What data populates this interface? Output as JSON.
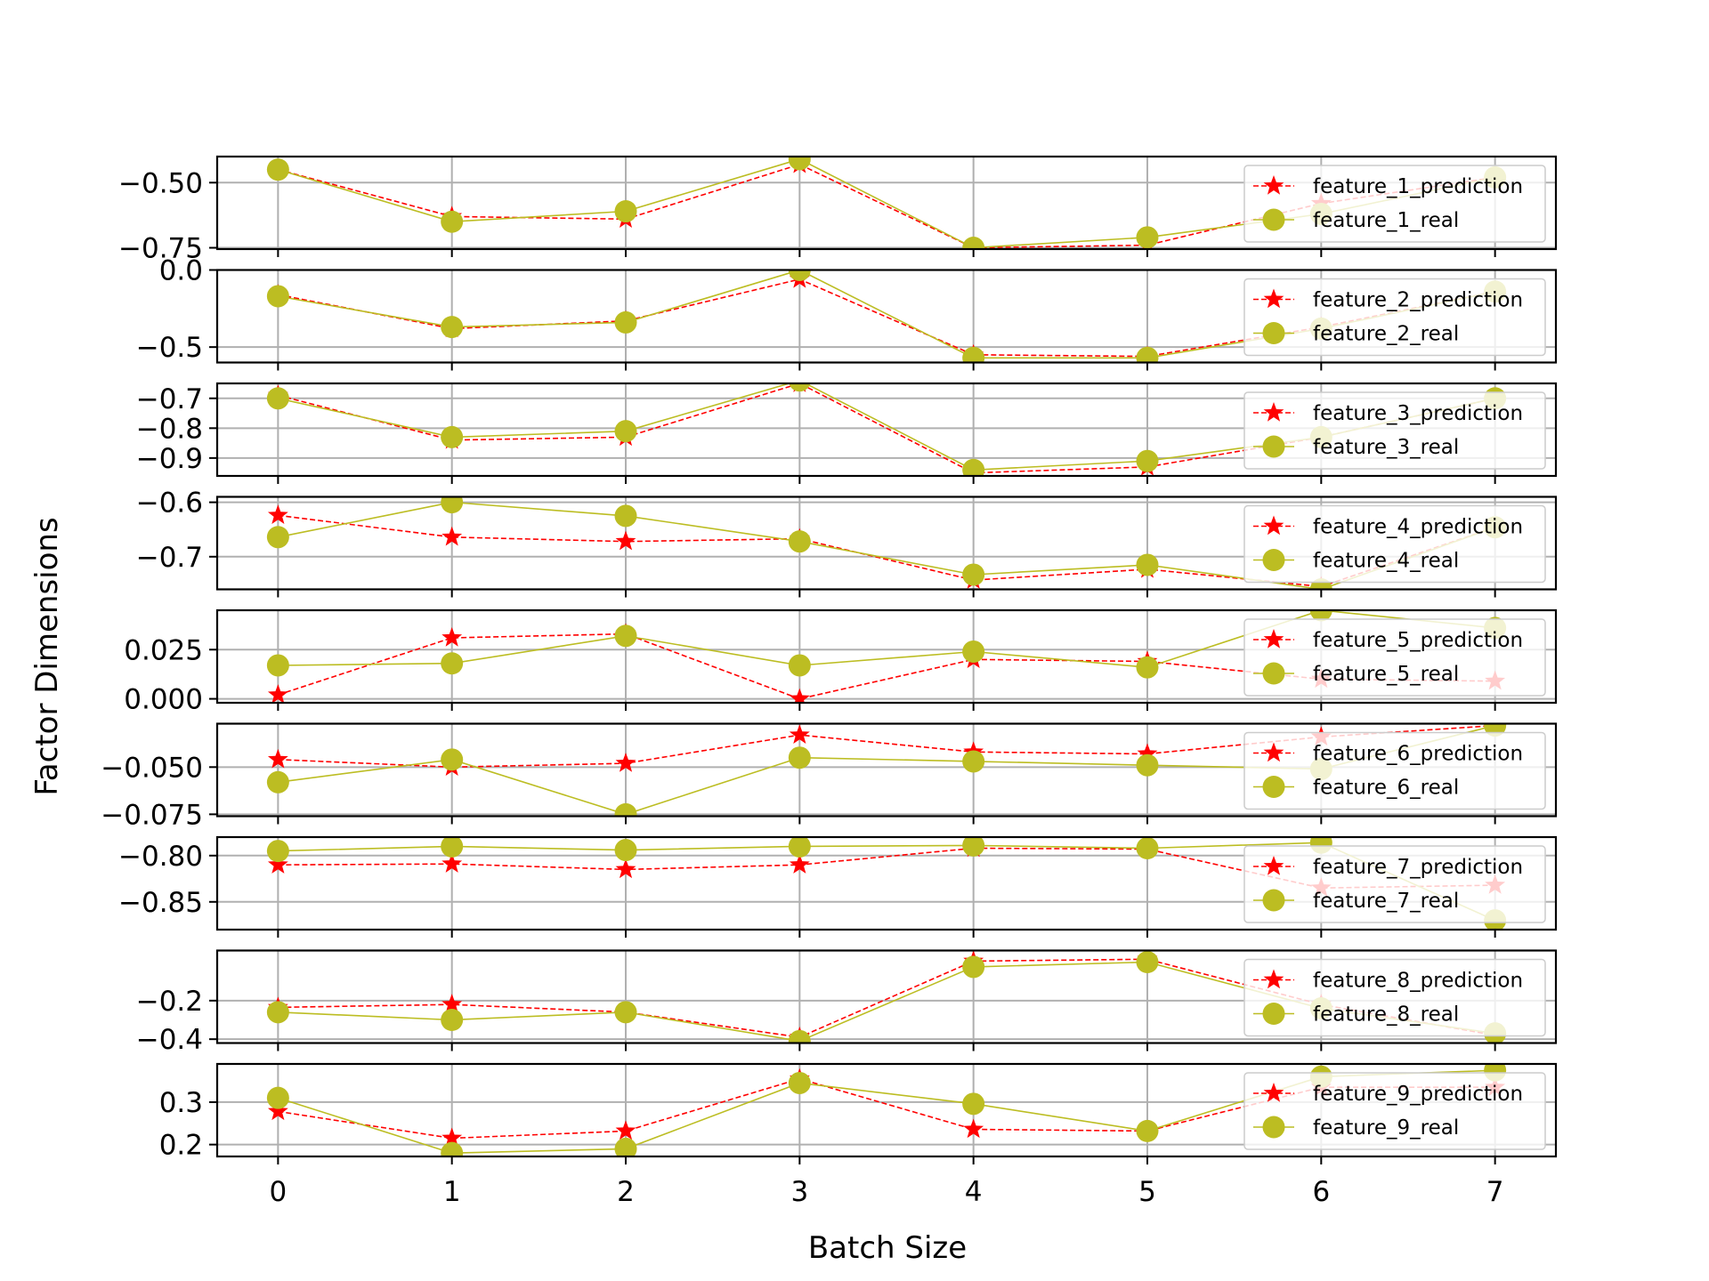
{
  "chart_data": {
    "type": "line",
    "xlabel": "Batch Size",
    "ylabel": "Factor Dimensions",
    "x": [
      0,
      1,
      2,
      3,
      4,
      5,
      6,
      7
    ],
    "x_ticks": [
      "0",
      "1",
      "2",
      "3",
      "4",
      "5",
      "6",
      "7"
    ],
    "xlim": [
      -0.35,
      7.35
    ],
    "grid": true,
    "legend_position": "upper-right",
    "colors": {
      "prediction": "#ff0000",
      "real": "#bcbd22"
    },
    "subplots": [
      {
        "ylim": [
          -0.755,
          -0.4
        ],
        "ticks": [
          -0.5,
          -0.75
        ],
        "tick_labels": [
          "−0.50",
          "−0.75"
        ],
        "series": [
          {
            "name": "feature_1_prediction",
            "kind": "prediction",
            "values": [
              -0.45,
              -0.63,
              -0.64,
              -0.43,
              -0.75,
              -0.74,
              -0.58,
              -0.48
            ]
          },
          {
            "name": "feature_1_real",
            "kind": "real",
            "values": [
              -0.45,
              -0.65,
              -0.61,
              -0.41,
              -0.75,
              -0.71,
              -0.62,
              -0.48
            ]
          }
        ]
      },
      {
        "ylim": [
          -0.6,
          0.0
        ],
        "ticks": [
          0.0,
          -0.5
        ],
        "tick_labels": [
          "0.0",
          "−0.5"
        ],
        "series": [
          {
            "name": "feature_2_prediction",
            "kind": "prediction",
            "values": [
              -0.16,
              -0.38,
              -0.33,
              -0.06,
              -0.55,
              -0.56,
              -0.37,
              -0.14
            ]
          },
          {
            "name": "feature_2_real",
            "kind": "real",
            "values": [
              -0.17,
              -0.37,
              -0.34,
              0.0,
              -0.57,
              -0.57,
              -0.38,
              -0.14
            ]
          }
        ]
      },
      {
        "ylim": [
          -0.96,
          -0.65
        ],
        "ticks": [
          -0.7,
          -0.8,
          -0.9
        ],
        "tick_labels": [
          "−0.7",
          "−0.8",
          "−0.9"
        ],
        "series": [
          {
            "name": "feature_3_prediction",
            "kind": "prediction",
            "values": [
              -0.69,
              -0.84,
              -0.83,
              -0.65,
              -0.95,
              -0.93,
              -0.83,
              -0.7
            ]
          },
          {
            "name": "feature_3_real",
            "kind": "real",
            "values": [
              -0.7,
              -0.83,
              -0.81,
              -0.64,
              -0.94,
              -0.91,
              -0.83,
              -0.7
            ]
          }
        ]
      },
      {
        "ylim": [
          -0.76,
          -0.59
        ],
        "ticks": [
          -0.6,
          -0.7
        ],
        "tick_labels": [
          "−0.6",
          "−0.7"
        ],
        "series": [
          {
            "name": "feature_4_prediction",
            "kind": "prediction",
            "values": [
              -0.624,
              -0.664,
              -0.672,
              -0.667,
              -0.743,
              -0.723,
              -0.755,
              -0.646
            ]
          },
          {
            "name": "feature_4_real",
            "kind": "real",
            "values": [
              -0.664,
              -0.6,
              -0.625,
              -0.672,
              -0.733,
              -0.715,
              -0.76,
              -0.646
            ]
          }
        ]
      },
      {
        "ylim": [
          -0.002,
          0.045
        ],
        "ticks": [
          0.025,
          0.0
        ],
        "tick_labels": [
          "0.025",
          "0.000"
        ],
        "series": [
          {
            "name": "feature_5_prediction",
            "kind": "prediction",
            "values": [
              0.002,
              0.031,
              0.033,
              0.0,
              0.02,
              0.019,
              0.01,
              0.009
            ]
          },
          {
            "name": "feature_5_real",
            "kind": "real",
            "values": [
              0.017,
              0.018,
              0.032,
              0.017,
              0.024,
              0.016,
              0.045,
              0.036
            ]
          }
        ]
      },
      {
        "ylim": [
          -0.076,
          -0.027
        ],
        "ticks": [
          -0.05,
          -0.075
        ],
        "tick_labels": [
          "−0.050",
          "−0.075"
        ],
        "series": [
          {
            "name": "feature_6_prediction",
            "kind": "prediction",
            "values": [
              -0.046,
              -0.05,
              -0.048,
              -0.033,
              -0.042,
              -0.043,
              -0.034,
              -0.028
            ]
          },
          {
            "name": "feature_6_real",
            "kind": "real",
            "values": [
              -0.058,
              -0.046,
              -0.075,
              -0.045,
              -0.047,
              -0.049,
              -0.051,
              -0.028
            ]
          }
        ]
      },
      {
        "ylim": [
          -0.88,
          -0.78
        ],
        "ticks": [
          -0.8,
          -0.85
        ],
        "tick_labels": [
          "−0.80",
          "−0.85"
        ],
        "series": [
          {
            "name": "feature_7_prediction",
            "kind": "prediction",
            "values": [
              -0.81,
              -0.809,
              -0.815,
              -0.81,
              -0.792,
              -0.793,
              -0.835,
              -0.832
            ]
          },
          {
            "name": "feature_7_real",
            "kind": "real",
            "values": [
              -0.795,
              -0.79,
              -0.794,
              -0.79,
              -0.789,
              -0.792,
              -0.786,
              -0.87
            ]
          }
        ]
      },
      {
        "ylim": [
          -0.42,
          0.06
        ],
        "ticks": [
          -0.2,
          -0.4
        ],
        "tick_labels": [
          "−0.2",
          "−0.4"
        ],
        "series": [
          {
            "name": "feature_8_prediction",
            "kind": "prediction",
            "values": [
              -0.235,
              -0.22,
              -0.26,
              -0.39,
              0.005,
              0.015,
              -0.22,
              -0.38
            ]
          },
          {
            "name": "feature_8_real",
            "kind": "real",
            "values": [
              -0.26,
              -0.3,
              -0.26,
              -0.41,
              -0.025,
              0.0,
              -0.24,
              -0.37
            ]
          }
        ]
      },
      {
        "ylim": [
          0.172,
          0.39
        ],
        "ticks": [
          0.3,
          0.2
        ],
        "tick_labels": [
          "0.3",
          "0.2"
        ],
        "series": [
          {
            "name": "feature_9_prediction",
            "kind": "prediction",
            "values": [
              0.278,
              0.215,
              0.232,
              0.355,
              0.236,
              0.232,
              0.335,
              0.335
            ]
          },
          {
            "name": "feature_9_real",
            "kind": "real",
            "values": [
              0.31,
              0.18,
              0.19,
              0.345,
              0.296,
              0.232,
              0.36,
              0.375
            ]
          }
        ]
      }
    ]
  }
}
